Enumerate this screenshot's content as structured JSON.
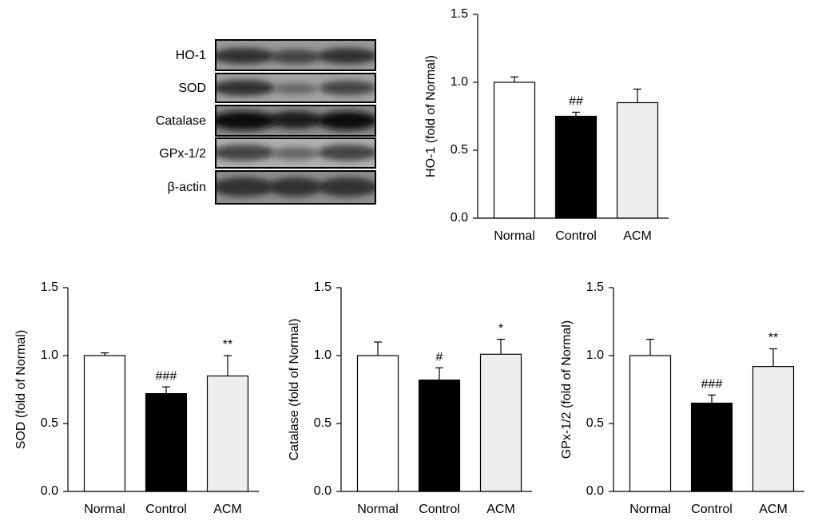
{
  "blot": {
    "labels": [
      "HO-1",
      "SOD",
      "Catalase",
      "GPx-1/2",
      "β-actin"
    ]
  },
  "chart_data": [
    {
      "type": "bar",
      "ylabel": "HO-1 (fold of Normal)",
      "categories": [
        "Normal",
        "Control",
        "ACM"
      ],
      "values": [
        1.0,
        0.75,
        0.85
      ],
      "errors": [
        0.04,
        0.03,
        0.1
      ],
      "annotations": [
        null,
        "##",
        null
      ],
      "colors": [
        "#ffffff",
        "#000000",
        "#eeeeee"
      ],
      "ylim": [
        0,
        1.5
      ],
      "yticks": [
        {
          "value": 0,
          "label": "0.0"
        },
        0.5,
        {
          "value": 1,
          "label": "1.0"
        },
        1.5
      ]
    },
    {
      "type": "bar",
      "ylabel": "SOD (fold of Normal)",
      "categories": [
        "Normal",
        "Control",
        "ACM"
      ],
      "values": [
        1.0,
        0.72,
        0.85
      ],
      "errors": [
        0.02,
        0.05,
        0.15
      ],
      "annotations": [
        null,
        "###",
        "**"
      ],
      "colors": [
        "#ffffff",
        "#000000",
        "#eeeeee"
      ],
      "ylim": [
        0,
        1.5
      ],
      "yticks": [
        {
          "value": 0,
          "label": "0.0"
        },
        0.5,
        {
          "value": 1,
          "label": "1.0"
        },
        1.5
      ]
    },
    {
      "type": "bar",
      "ylabel": "Catalase (fold of Normal)",
      "categories": [
        "Normal",
        "Control",
        "ACM"
      ],
      "values": [
        1.0,
        0.82,
        1.01
      ],
      "errors": [
        0.1,
        0.09,
        0.11
      ],
      "annotations": [
        null,
        "#",
        "*"
      ],
      "colors": [
        "#ffffff",
        "#000000",
        "#eeeeee"
      ],
      "ylim": [
        0,
        1.5
      ],
      "yticks": [
        {
          "value": 0,
          "label": "0.0"
        },
        0.5,
        {
          "value": 1,
          "label": "1.0"
        },
        1.5
      ]
    },
    {
      "type": "bar",
      "ylabel": "GPx-1/2 (fold of Normal)",
      "categories": [
        "Normal",
        "Control",
        "ACM"
      ],
      "values": [
        1.0,
        0.65,
        0.92
      ],
      "errors": [
        0.12,
        0.06,
        0.13
      ],
      "annotations": [
        null,
        "###",
        "**"
      ],
      "colors": [
        "#ffffff",
        "#000000",
        "#eeeeee"
      ],
      "ylim": [
        0,
        1.5
      ],
      "yticks": [
        {
          "value": 0,
          "label": "0.0"
        },
        0.5,
        {
          "value": 1,
          "label": "1.0"
        },
        1.5
      ]
    }
  ]
}
